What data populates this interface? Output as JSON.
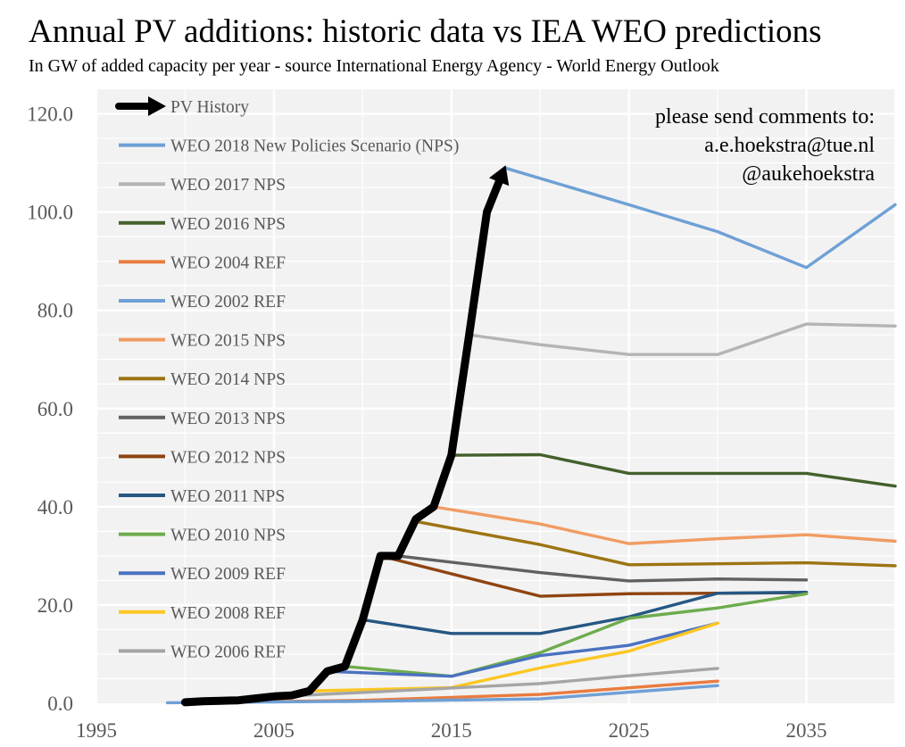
{
  "chart_data": {
    "type": "line",
    "title": "Annual PV additions: historic data vs IEA WEO predictions",
    "subtitle": "In GW of added capacity per year - source International Energy Agency - World Energy Outlook",
    "xlabel": "",
    "ylabel": "",
    "xlim": [
      1995,
      2040
    ],
    "ylim": [
      0,
      120
    ],
    "x_ticks": [
      "1995",
      "2005",
      "2015",
      "2025",
      "2035"
    ],
    "y_ticks": [
      "0.0",
      "20.0",
      "40.0",
      "60.0",
      "80.0",
      "100.0",
      "120.0"
    ],
    "grid": true,
    "legend_position": "top-left",
    "annotation": [
      "please send comments to:",
      "a.e.hoekstra@tue.nl",
      "@aukehoekstra"
    ],
    "series": [
      {
        "name": "PV History",
        "color": "#000000",
        "style": "arrow",
        "x": [
          2000,
          2001,
          2002,
          2003,
          2004,
          2005,
          2006,
          2007,
          2008,
          2009,
          2010,
          2011,
          2012,
          2013,
          2014,
          2015,
          2016,
          2017,
          2018
        ],
        "y": [
          0.2,
          0.4,
          0.5,
          0.6,
          1.0,
          1.4,
          1.6,
          2.5,
          6.5,
          7.5,
          17,
          30,
          30,
          37.5,
          40,
          50.5,
          75,
          100,
          109
        ]
      },
      {
        "name": "WEO 2018 New Policies Scenario (NPS)",
        "color": "#6fa0d6",
        "x": [
          2018,
          2025,
          2030,
          2035,
          2040
        ],
        "y": [
          109,
          101.5,
          96,
          88.7,
          101.5
        ]
      },
      {
        "name": "WEO 2017 NPS",
        "color": "#b4b4b4",
        "x": [
          2016,
          2020,
          2025,
          2030,
          2035,
          2040
        ],
        "y": [
          75,
          73,
          71,
          71,
          77.2,
          76.8
        ]
      },
      {
        "name": "WEO 2016 NPS",
        "color": "#44602d",
        "x": [
          2015,
          2020,
          2025,
          2030,
          2035,
          2040
        ],
        "y": [
          50.5,
          50.6,
          46.8,
          46.8,
          46.8,
          44.2
        ]
      },
      {
        "name": "WEO 2004 REF",
        "color": "#e97c3f",
        "x": [
          2000,
          2010,
          2020,
          2030
        ],
        "y": [
          0.1,
          0.6,
          1.8,
          4.5
        ]
      },
      {
        "name": "WEO 2002 REF",
        "color": "#6fa0d6",
        "x": [
          1999,
          2010,
          2020,
          2030
        ],
        "y": [
          0.1,
          0.4,
          0.9,
          3.6
        ]
      },
      {
        "name": "WEO 2015 NPS",
        "color": "#f19c63",
        "x": [
          2014,
          2020,
          2025,
          2030,
          2035,
          2040
        ],
        "y": [
          40,
          36.5,
          32.5,
          33.5,
          34.3,
          33.0
        ]
      },
      {
        "name": "WEO 2014 NPS",
        "color": "#9c7412",
        "x": [
          2013,
          2020,
          2025,
          2030,
          2035,
          2040
        ],
        "y": [
          37,
          32.3,
          28.2,
          28.4,
          28.6,
          28.0
        ]
      },
      {
        "name": "WEO 2013 NPS",
        "color": "#616161",
        "x": [
          2012,
          2020,
          2025,
          2030,
          2035
        ],
        "y": [
          30,
          26.6,
          24.9,
          25.3,
          25.1
        ]
      },
      {
        "name": "WEO 2012 NPS",
        "color": "#8f4411",
        "x": [
          2011,
          2020,
          2025,
          2030,
          2035
        ],
        "y": [
          30,
          21.8,
          22.3,
          22.4,
          22.5
        ]
      },
      {
        "name": "WEO 2011 NPS",
        "color": "#255783",
        "x": [
          2010,
          2015,
          2020,
          2025,
          2030,
          2035
        ],
        "y": [
          17,
          14.2,
          14.2,
          17.6,
          22.4,
          22.6
        ]
      },
      {
        "name": "WEO 2010 NPS",
        "color": "#6eac4d",
        "x": [
          2009,
          2015,
          2020,
          2025,
          2030,
          2035
        ],
        "y": [
          7.5,
          5.5,
          10.3,
          17.3,
          19.4,
          22.3
        ]
      },
      {
        "name": "WEO 2009 REF",
        "color": "#4a72c0",
        "x": [
          2008,
          2015,
          2020,
          2025,
          2030
        ],
        "y": [
          6.5,
          5.5,
          9.7,
          11.8,
          16.3
        ]
      },
      {
        "name": "WEO 2008 REF",
        "color": "#fcc623",
        "x": [
          2007,
          2015,
          2020,
          2025,
          2030
        ],
        "y": [
          2.5,
          3.2,
          7.2,
          10.6,
          16.3
        ]
      },
      {
        "name": "WEO 2006 REF",
        "color": "#a5a5a5",
        "x": [
          2004,
          2010,
          2020,
          2025,
          2030
        ],
        "y": [
          1.2,
          2.2,
          4.0,
          5.6,
          7.1
        ]
      }
    ]
  }
}
